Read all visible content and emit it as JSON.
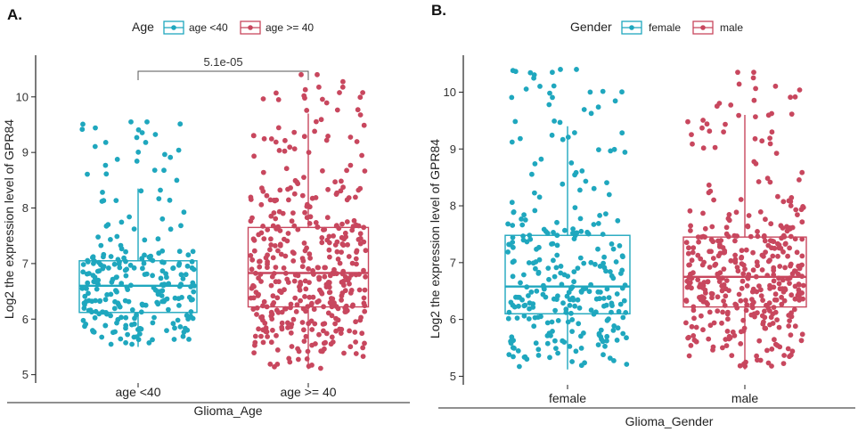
{
  "chart_data": [
    {
      "panel": "A.",
      "type": "box",
      "xlabel": "Glioma_Age",
      "ylabel": "Log2 the expression  level of GPR84",
      "ylim": [
        4.85,
        10.75
      ],
      "yticks": [
        5,
        6,
        7,
        8,
        9,
        10
      ],
      "legend": {
        "title": "Age",
        "position": "top"
      },
      "categories": [
        "age <40",
        "age >= 40"
      ],
      "series": [
        {
          "name": "age <40",
          "color": "#1fa7be",
          "box": {
            "min": 5.5,
            "q1": 6.12,
            "median": 6.6,
            "q3": 7.05,
            "max": 8.35
          },
          "point_range": [
            5.5,
            9.55
          ],
          "n_points": 260
        },
        {
          "name": "age >= 40",
          "color": "#c8475e",
          "box": {
            "min": 5.1,
            "q1": 6.22,
            "median": 6.83,
            "q3": 7.65,
            "max": 9.7
          },
          "point_range": [
            5.1,
            10.4
          ],
          "n_points": 430
        }
      ],
      "comparison": {
        "groups": [
          "age <40",
          "age >= 40"
        ],
        "p_value": "5.1e-05"
      }
    },
    {
      "panel": "B.",
      "type": "box",
      "xlabel": "Glioma_Gender",
      "ylabel": "Log2 the expression  level of GPR84",
      "ylim": [
        4.85,
        10.65
      ],
      "yticks": [
        5,
        6,
        7,
        8,
        9,
        10
      ],
      "legend": {
        "title": "Gender",
        "position": "top"
      },
      "categories": [
        "female",
        "male"
      ],
      "series": [
        {
          "name": "female",
          "color": "#1fa7be",
          "box": {
            "min": 5.12,
            "q1": 6.1,
            "median": 6.58,
            "q3": 7.48,
            "max": 9.4
          },
          "point_range": [
            5.1,
            10.4
          ],
          "n_points": 290
        },
        {
          "name": "male",
          "color": "#c8475e",
          "box": {
            "min": 5.12,
            "q1": 6.22,
            "median": 6.75,
            "q3": 7.45,
            "max": 9.6
          },
          "point_range": [
            5.1,
            10.35
          ],
          "n_points": 400
        }
      ]
    }
  ]
}
